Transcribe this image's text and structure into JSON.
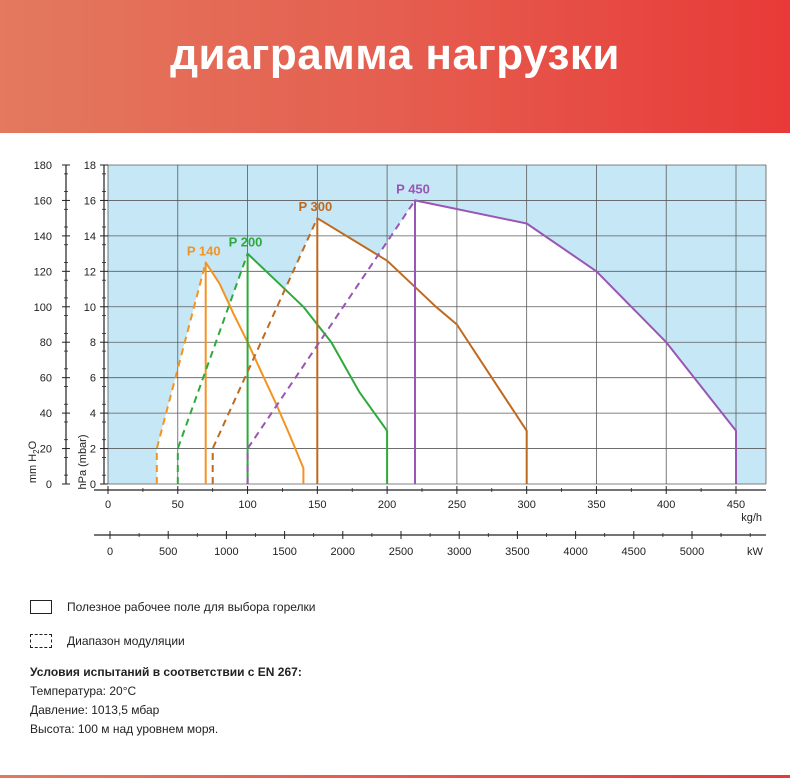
{
  "header": {
    "title": "диаграмма нагрузки"
  },
  "chart_data": {
    "type": "line",
    "colors": {
      "plot_bg": "#c6e8f6",
      "field_bg": "#ffffff",
      "grid": "#5a5a5a"
    },
    "hpa_axis": {
      "label": "hPa (mbar)",
      "range": [
        0,
        18
      ],
      "ticks": [
        0,
        2,
        4,
        6,
        8,
        10,
        12,
        14,
        16,
        18
      ]
    },
    "mm_axis": {
      "label_main": "mm H",
      "label_sub": "2",
      "label_end": "O",
      "range": [
        0,
        180
      ],
      "ticks": [
        0,
        20,
        40,
        60,
        80,
        100,
        120,
        140,
        160,
        180
      ]
    },
    "kgh_axis": {
      "label": "kg/h",
      "range": [
        0,
        450
      ],
      "ticks": [
        0,
        50,
        100,
        150,
        200,
        250,
        300,
        350,
        400,
        450
      ]
    },
    "kw_axis": {
      "label": "kW",
      "ticks": [
        0,
        500,
        1000,
        1500,
        2000,
        2500,
        3000,
        3500,
        4000,
        4500,
        5000
      ]
    },
    "series": [
      {
        "name": "P 140",
        "color": "#f39321",
        "modulation": [
          [
            35,
            0
          ],
          [
            35,
            2
          ],
          [
            70,
            12.5
          ]
        ],
        "field": [
          [
            70,
            0
          ],
          [
            70,
            12.5
          ],
          [
            80,
            11.3
          ],
          [
            90,
            9.6
          ],
          [
            100,
            8
          ],
          [
            110,
            6.3
          ],
          [
            120,
            4.6
          ],
          [
            130,
            2.8
          ],
          [
            140,
            0.9
          ],
          [
            140,
            0
          ]
        ]
      },
      {
        "name": "P 200",
        "color": "#2eaa3c",
        "modulation": [
          [
            50,
            0
          ],
          [
            50,
            2
          ],
          [
            100,
            13
          ]
        ],
        "field": [
          [
            100,
            0
          ],
          [
            100,
            13
          ],
          [
            120,
            11.5
          ],
          [
            140,
            10
          ],
          [
            160,
            8
          ],
          [
            180,
            5.2
          ],
          [
            200,
            3
          ],
          [
            200,
            0
          ]
        ]
      },
      {
        "name": "P 300",
        "color": "#bf6a1f",
        "modulation": [
          [
            75,
            0
          ],
          [
            75,
            2
          ],
          [
            150,
            15
          ]
        ],
        "field": [
          [
            150,
            0
          ],
          [
            150,
            15
          ],
          [
            200,
            12.6
          ],
          [
            235,
            10
          ],
          [
            250,
            9
          ],
          [
            275,
            6
          ],
          [
            300,
            3
          ],
          [
            300,
            0
          ]
        ]
      },
      {
        "name": "P 450",
        "color": "#9956b4",
        "modulation": [
          [
            100,
            0
          ],
          [
            100,
            2
          ],
          [
            220,
            16
          ]
        ],
        "field": [
          [
            220,
            0
          ],
          [
            220,
            16
          ],
          [
            300,
            14.7
          ],
          [
            350,
            12
          ],
          [
            400,
            8
          ],
          [
            450,
            3
          ],
          [
            450,
            0
          ]
        ]
      }
    ]
  },
  "legend": {
    "working_field": "Полезное рабочее поле для выбора горелки",
    "modulation": "Диапазон модуляции"
  },
  "notes": {
    "heading": "Условия испытаний в соответствии с EN 267:",
    "temperature": "Температура: 20°C",
    "pressure": "Давление: 1013,5 мбар",
    "altitude": "Высота: 100 м над уровнем моря."
  }
}
